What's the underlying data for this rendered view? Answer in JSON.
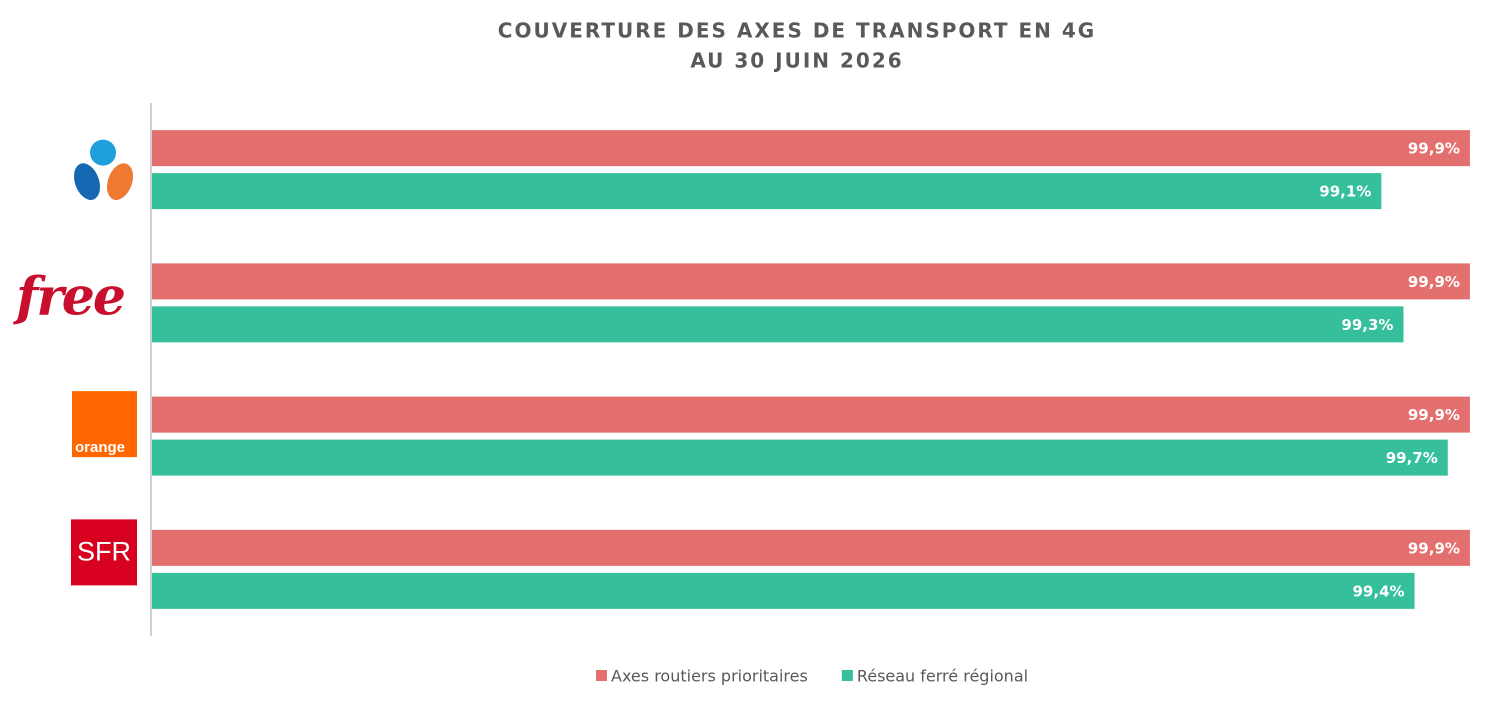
{
  "chart_data": {
    "type": "bar",
    "orientation": "horizontal",
    "title": "COUVERTURE DES AXES DE TRANSPORT EN 4G",
    "subtitle": "AU 30 JUIN 2026",
    "categories": [
      null,
      "free",
      "orange",
      "SFR"
    ],
    "series": [
      {
        "name": "Axes routiers prioritaires",
        "color": "#e46f6f",
        "values": [
          99.9,
          99.9,
          99.9,
          99.9
        ],
        "value_labels": [
          "99,9%",
          "99,9%",
          "99,9%",
          "99,9%"
        ]
      },
      {
        "name": "Réseau ferré régional",
        "color": "#36bf9b",
        "values": [
          99.1,
          99.3,
          99.7,
          99.4
        ],
        "value_labels": [
          "99,1%",
          "99,3%",
          "99,7%",
          "99,4%"
        ]
      }
    ],
    "xlim": [
      88,
      100
    ],
    "legend": "bottom"
  }
}
